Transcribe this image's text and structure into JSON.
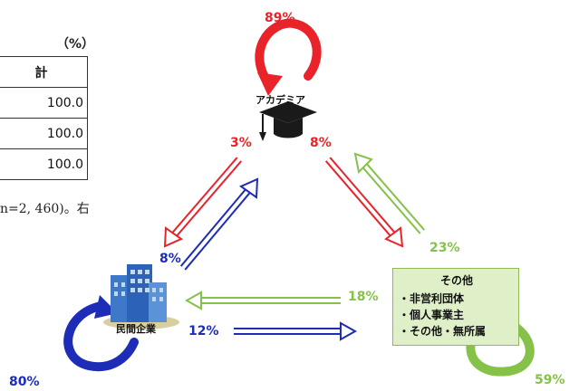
{
  "table_fragment": {
    "unit": "（%）",
    "header": "計",
    "rows": [
      "100.0",
      "100.0",
      "100.0"
    ],
    "note": "n=2, 460)。右"
  },
  "nodes": {
    "academia": {
      "label": "アカデミア",
      "icon": "graduation-cap-icon"
    },
    "company": {
      "label": "民間企業",
      "icon": "office-building-icon"
    },
    "other": {
      "label": "その他",
      "items": [
        "・非営利団体",
        "・個人事業主",
        "・その他・無所属"
      ]
    }
  },
  "flows": {
    "academia_self": "89%",
    "academia_to_company": "3%",
    "academia_to_other": "8%",
    "company_self": "80%",
    "company_to_academia": "8%",
    "company_to_other": "12%",
    "other_self": "59%",
    "other_to_academia": "23%",
    "other_to_company": "18%"
  },
  "colors": {
    "academia": "#e8232a",
    "company": "#1d2db8",
    "other": "#86c24a"
  }
}
